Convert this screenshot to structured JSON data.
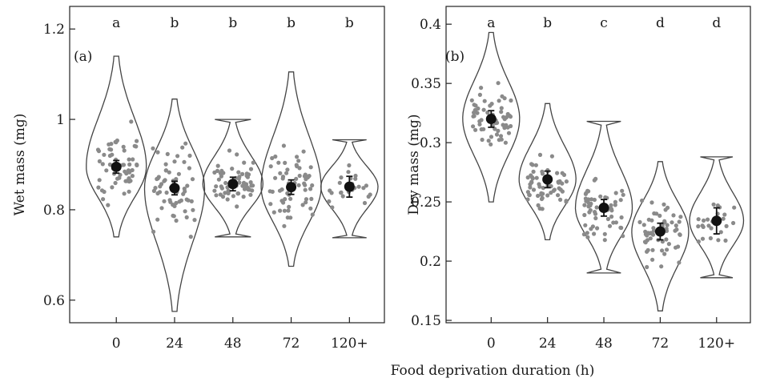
{
  "figure": {
    "shared_xlabel": "Food deprivation duration (h)"
  },
  "chart_data": [
    {
      "type": "violin",
      "panel_label": "(a)",
      "title": "",
      "xlabel": "",
      "ylabel": "Wet mass (mg)",
      "categories": [
        "0",
        "24",
        "48",
        "72",
        "120+"
      ],
      "ylim": [
        0.55,
        1.25
      ],
      "yticks": [
        0.6,
        0.8,
        1,
        1.2
      ],
      "ytick_labels": [
        "0.6",
        "0.8",
        "1",
        "1.2"
      ],
      "significance_letters": [
        "a",
        "b",
        "b",
        "b",
        "b"
      ],
      "means": [
        0.895,
        0.848,
        0.857,
        0.85,
        0.851
      ],
      "error_bars": [
        [
          0.881,
          0.909
        ],
        [
          0.833,
          0.863
        ],
        [
          0.842,
          0.872
        ],
        [
          0.834,
          0.866
        ],
        [
          0.828,
          0.874
        ]
      ],
      "violin_range": [
        [
          0.74,
          1.14
        ],
        [
          0.575,
          1.045
        ],
        [
          0.74,
          1.0
        ],
        [
          0.675,
          1.105
        ],
        [
          0.738,
          0.955
        ]
      ],
      "point_counts": [
        60,
        60,
        60,
        60,
        25
      ]
    },
    {
      "type": "violin",
      "panel_label": "(b)",
      "title": "",
      "xlabel": "",
      "ylabel": "Dry mass (mg)",
      "categories": [
        "0",
        "24",
        "48",
        "72",
        "120+"
      ],
      "ylim": [
        0.148,
        0.415
      ],
      "yticks": [
        0.15,
        0.2,
        0.25,
        0.3,
        0.35,
        0.4
      ],
      "ytick_labels": [
        "0.15",
        "0.2",
        "0.25",
        "0.3",
        "0.35",
        "0.4"
      ],
      "significance_letters": [
        "a",
        "b",
        "c",
        "d",
        "d"
      ],
      "means": [
        0.32,
        0.269,
        0.245,
        0.225,
        0.234
      ],
      "error_bars": [
        [
          0.313,
          0.327
        ],
        [
          0.262,
          0.276
        ],
        [
          0.238,
          0.252
        ],
        [
          0.218,
          0.232
        ],
        [
          0.223,
          0.245
        ]
      ],
      "violin_range": [
        [
          0.25,
          0.393
        ],
        [
          0.218,
          0.333
        ],
        [
          0.19,
          0.318
        ],
        [
          0.158,
          0.284
        ],
        [
          0.186,
          0.288
        ]
      ],
      "point_counts": [
        60,
        60,
        60,
        60,
        25
      ]
    }
  ]
}
